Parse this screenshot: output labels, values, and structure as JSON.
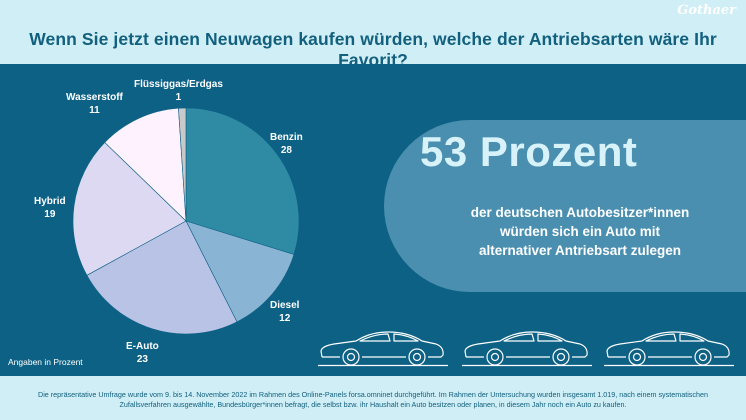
{
  "header": {
    "title": "Wenn Sie jetzt einen Neuwagen kaufen würden, welche der Antriebsarten wäre Ihr Favorit?",
    "brand": "Gothaer"
  },
  "chart_data": {
    "type": "pie",
    "title": "",
    "unit_note": "Angaben in Prozent",
    "slices": [
      {
        "label": "Benzin",
        "value": 28,
        "color": "#2f8aa3"
      },
      {
        "label": "Diesel",
        "value": 12,
        "color": "#89b4d3"
      },
      {
        "label": "E-Auto",
        "value": 23,
        "color": "#b9c3e6"
      },
      {
        "label": "Hybrid",
        "value": 19,
        "color": "#ddd9f2"
      },
      {
        "label": "Wasserstoff",
        "value": 11,
        "color": "#fdf2fd"
      },
      {
        "label": "Flüssiggas/Erdgas",
        "value": 1,
        "color": "#c9c9c9"
      }
    ],
    "start": "12 o'clock",
    "direction": "clockwise"
  },
  "callout": {
    "headline": "53 Prozent",
    "text_lines": [
      "der deutschen Autobesitzer*innen",
      "würden sich ein Auto mit",
      "alternativer Antriebsart zulegen"
    ]
  },
  "footer": {
    "note": "Die repräsentative Umfrage wurde vom 9. bis 14. November 2022 im Rahmen des Online-Panels forsa.omninet durchgeführt. Im Rahmen der Untersuchung wurden insgesamt 1.019, nach einem systematischen Zufallsverfahren ausgewählte, Bundesbürger*innen befragt, die selbst bzw. ihr Haushalt ein Auto besitzen oder planen, in diesem Jahr noch ein Auto zu kaufen."
  },
  "decor": {
    "car_icon": "sedan-outline-icon",
    "car_count": 3
  }
}
